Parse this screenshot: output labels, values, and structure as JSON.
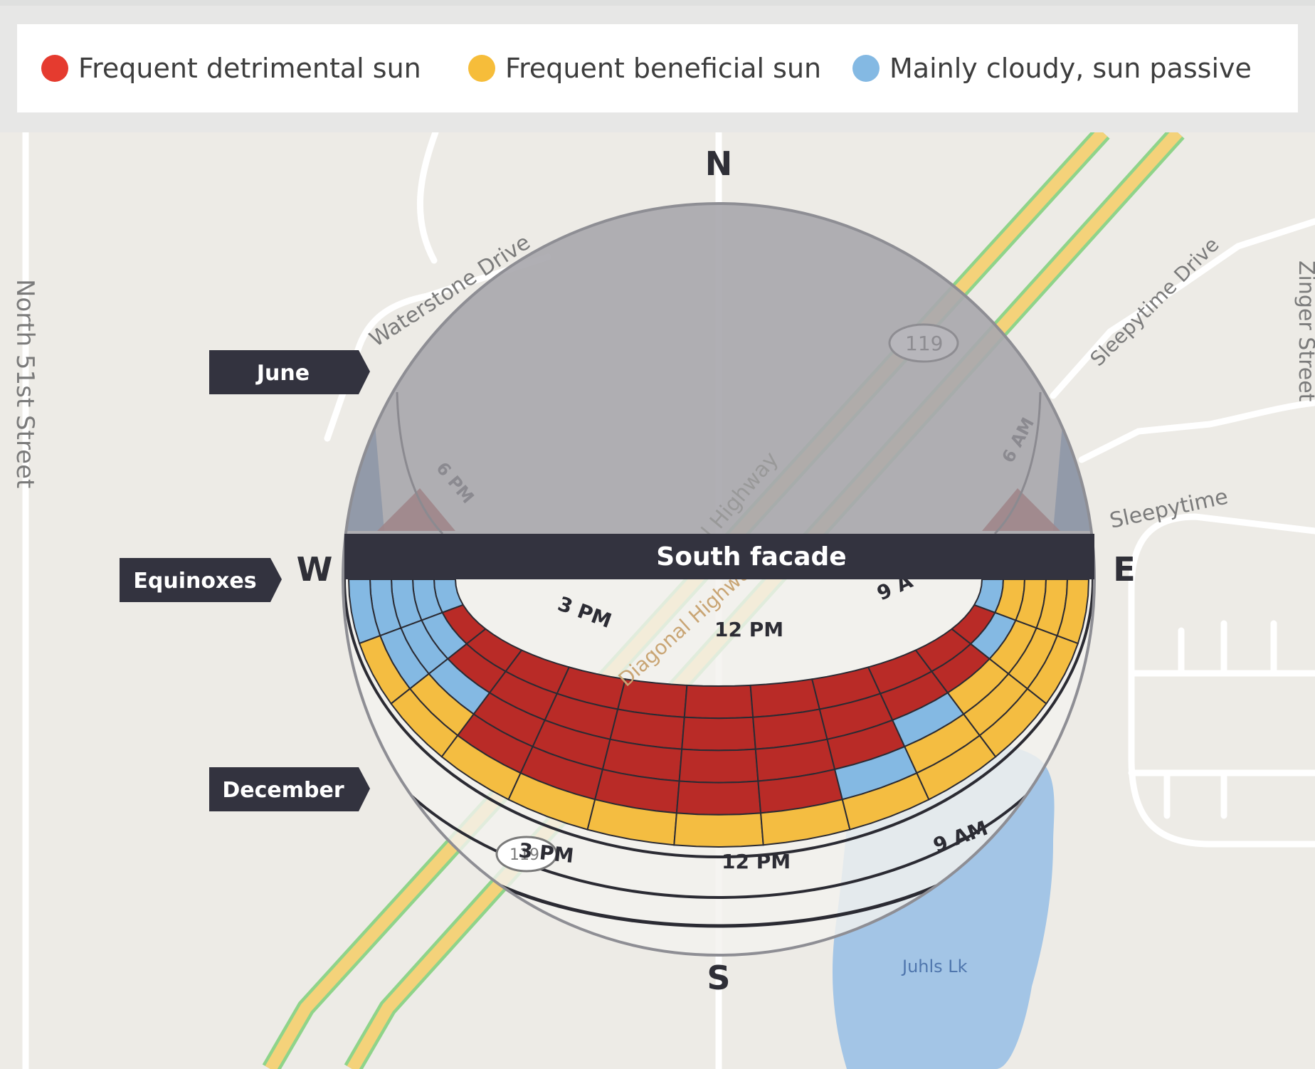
{
  "legend": {
    "items": [
      {
        "label": "Frequent detrimental sun",
        "color": "#e53b2f"
      },
      {
        "label": "Frequent beneficial sun",
        "color": "#f6bd3a"
      },
      {
        "label": "Mainly cloudy, sun passive",
        "color": "#84b9e3"
      }
    ]
  },
  "map": {
    "streets": [
      "North 51st Street",
      "Waterstone Drive",
      "Sleepytime Drive",
      "Sleepytime",
      "Zinger Street"
    ],
    "route_shield": "119",
    "lake": "Juhls Lk",
    "highway_fragments": [
      "Diagonal Highway",
      "Diagonal Highway"
    ],
    "december_shield_fragment": "119"
  },
  "compass": {
    "north": "N",
    "south": "S",
    "east": "E",
    "west": "W"
  },
  "facade": {
    "label": "South facade"
  },
  "season_tags": {
    "june": "June",
    "equinoxes": "Equinoxes",
    "december": "December"
  },
  "time_labels": {
    "june": {
      "pm6": "6 PM",
      "am6": "6 AM"
    },
    "equinox": {
      "pm3": "3 PM",
      "pm12": "12 PM",
      "am9": "9 A"
    },
    "december": {
      "pm3": "3 PM",
      "pm12": "12 PM",
      "am9": "9 AM"
    }
  },
  "colors": {
    "detrimental": "#b92b27",
    "beneficial": "#f4bd41",
    "passive": "#84b9e3",
    "tag": "#33333f",
    "dome": "#a9a8ae"
  },
  "sun_grid": {
    "rows": [
      [
        "passive",
        "detrimental",
        "detrimental",
        "detrimental",
        "detrimental",
        "detrimental",
        "detrimental",
        "detrimental",
        "detrimental",
        "detrimental",
        "detrimental",
        "detrimental",
        "passive"
      ],
      [
        "passive",
        "passive",
        "detrimental",
        "detrimental",
        "detrimental",
        "detrimental",
        "detrimental",
        "detrimental",
        "detrimental",
        "detrimental",
        "detrimental",
        "passive",
        "beneficial"
      ],
      [
        "passive",
        "passive",
        "passive",
        "detrimental",
        "detrimental",
        "detrimental",
        "detrimental",
        "detrimental",
        "detrimental",
        "passive",
        "beneficial",
        "beneficial",
        "beneficial"
      ],
      [
        "passive",
        "passive",
        "beneficial",
        "detrimental",
        "detrimental",
        "detrimental",
        "detrimental",
        "detrimental",
        "passive",
        "beneficial",
        "beneficial",
        "beneficial",
        "beneficial"
      ],
      [
        "passive",
        "beneficial",
        "beneficial",
        "beneficial",
        "beneficial",
        "beneficial",
        "beneficial",
        "beneficial",
        "beneficial",
        "beneficial",
        "beneficial",
        "beneficial",
        "beneficial"
      ]
    ]
  }
}
